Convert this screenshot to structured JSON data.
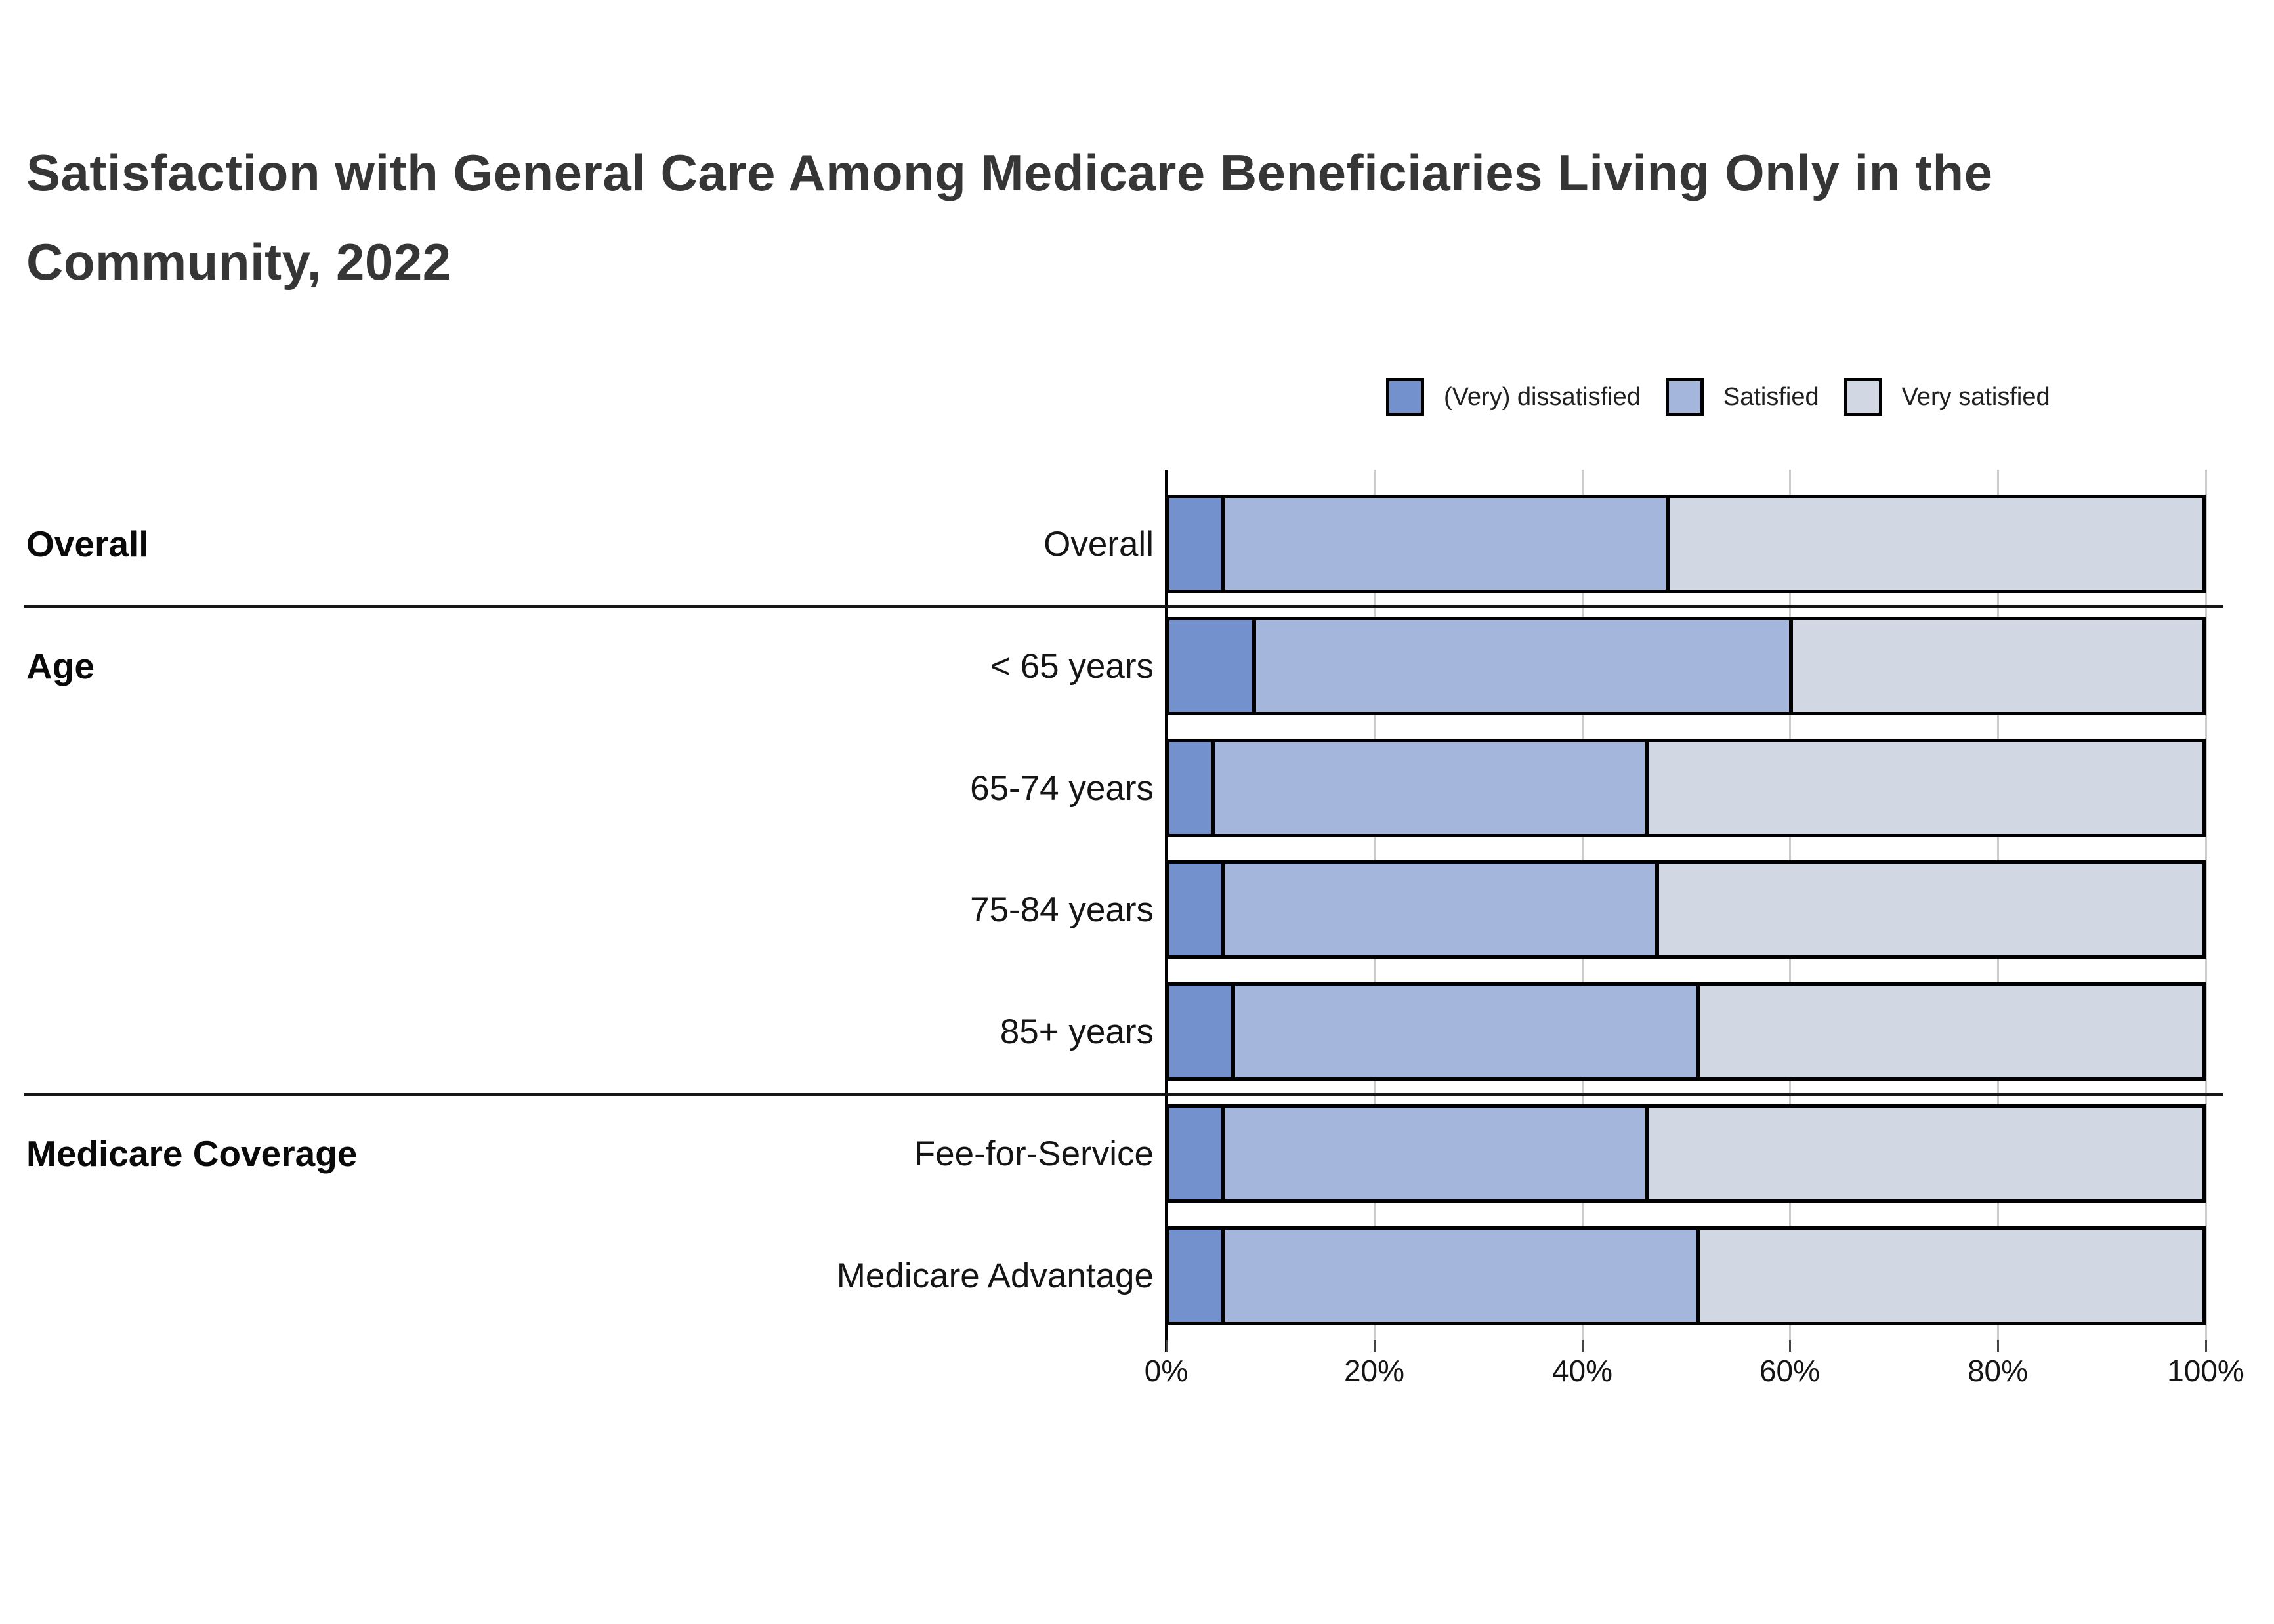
{
  "title": "Satisfaction with General Care Among Medicare Beneficiaries Living Only in the Community, 2022",
  "legend": {
    "items": [
      {
        "label": "(Very) dissatisfied",
        "color": "#7392CD"
      },
      {
        "label": "Satisfied",
        "color": "#A4B6DC"
      },
      {
        "label": "Very satisfied",
        "color": "#D2D8E3"
      }
    ]
  },
  "chart_data": {
    "type": "bar",
    "orientation": "horizontal",
    "stacked": true,
    "title": "Satisfaction with General Care Among Medicare Beneficiaries Living Only in the Community, 2022",
    "categories": [
      "Overall",
      "< 65 years",
      "65-74 years",
      "75-84 years",
      "85+ years",
      "Fee-for-Service",
      "Medicare Advantage"
    ],
    "series": [
      {
        "name": "(Very) dissatisfied",
        "color": "#7392CD",
        "values": [
          5,
          8,
          4,
          5,
          6,
          5,
          5
        ]
      },
      {
        "name": "Satisfied",
        "color": "#A4B6DC",
        "values": [
          43,
          52,
          42,
          42,
          45,
          41,
          46
        ]
      },
      {
        "name": "Very satisfied",
        "color": "#D2D8E3",
        "values": [
          52,
          40,
          54,
          53,
          49,
          54,
          49
        ]
      }
    ],
    "group_labels": [
      {
        "label": "Overall",
        "row": 0
      },
      {
        "label": "Age",
        "row": 1
      },
      {
        "label": "Medicare Coverage",
        "row": 5
      }
    ],
    "separators_after_rows": [
      0,
      4
    ],
    "x_ticks": [
      "0%",
      "20%",
      "40%",
      "60%",
      "80%",
      "100%"
    ],
    "xlim": [
      0,
      100
    ],
    "grid": true,
    "legend_position": "top-right",
    "colors": {
      "bar_border": "#000000",
      "axis": "#000000",
      "gridline": "#cccccc",
      "title_text": "#363636",
      "label_text": "#151515"
    }
  }
}
